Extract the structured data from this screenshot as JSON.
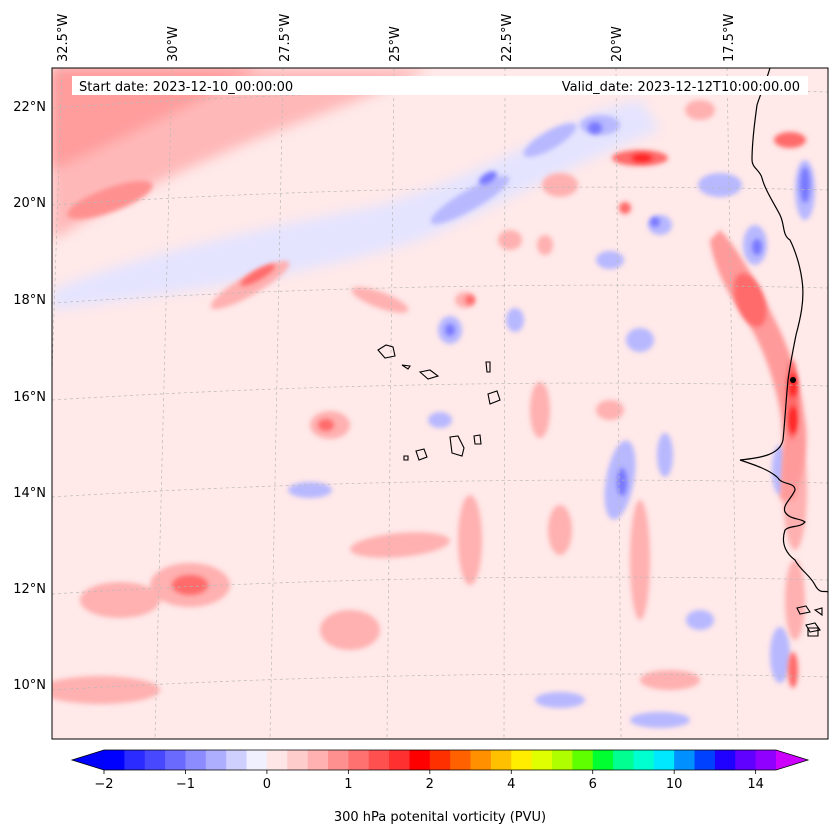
{
  "header": {
    "start_date": "Start date: 2023-12-10_00:00:00",
    "valid_date": "Valid_date: 2023-12-12T10:00:00.00"
  },
  "map": {
    "projection": "lambert-conformal",
    "lon_labels": [
      "32.5°W",
      "30°W",
      "27.5°W",
      "25°W",
      "22.5°W",
      "20°W",
      "17.5°W"
    ],
    "lat_labels": [
      "22°N",
      "20°N",
      "18°N",
      "16°N",
      "14°N",
      "12°N",
      "10°N"
    ],
    "gridlines": "dashed",
    "coastlines": true,
    "field": "300 hPa potential vorticity"
  },
  "colorbar": {
    "title": "300 hPa potenital vorticity (PVU)",
    "tick_labels": [
      "−2",
      "−1",
      "0",
      "1",
      "2",
      "4",
      "6",
      "10",
      "14"
    ],
    "colors": [
      "#0000ff",
      "#2b2bff",
      "#4848ff",
      "#6a6aff",
      "#8c8cff",
      "#aeaeff",
      "#d0d0ff",
      "#f0f0ff",
      "#ffe6e6",
      "#ffcccc",
      "#ffb0b0",
      "#ff9090",
      "#ff7070",
      "#ff5050",
      "#ff3030",
      "#ff0000",
      "#ff3000",
      "#ff6000",
      "#ff9000",
      "#ffc000",
      "#ffee00",
      "#e0ff00",
      "#b0ff00",
      "#60ff00",
      "#00ff30",
      "#00ff90",
      "#00ffd0",
      "#00e8ff",
      "#0090ff",
      "#0040ff",
      "#2000ff",
      "#6000ff",
      "#9000ff"
    ],
    "extend": "both",
    "left_extension_color": "#0000ff",
    "right_extension_color": "#cc00ff"
  }
}
